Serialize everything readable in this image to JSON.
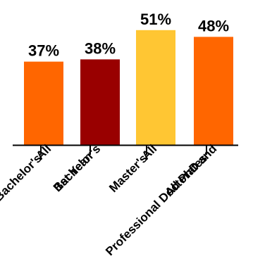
{
  "chart_data": {
    "type": "bar",
    "title": "",
    "xlabel": "",
    "ylabel": "",
    "ylim": [
      0,
      100
    ],
    "grid": false,
    "categories": [
      [
        "All",
        "Bachelor's"
      ],
      [
        "Bachelor's",
        "1st Year"
      ],
      [
        "All",
        "Master's"
      ],
      [
        "All PhD and",
        "Professional Doctorates"
      ]
    ],
    "values": [
      37,
      38,
      51,
      48
    ],
    "value_labels": [
      "37%",
      "38%",
      "51%",
      "48%"
    ],
    "colors": [
      "#ff6600",
      "#990000",
      "#ffc633",
      "#ff6600"
    ]
  }
}
